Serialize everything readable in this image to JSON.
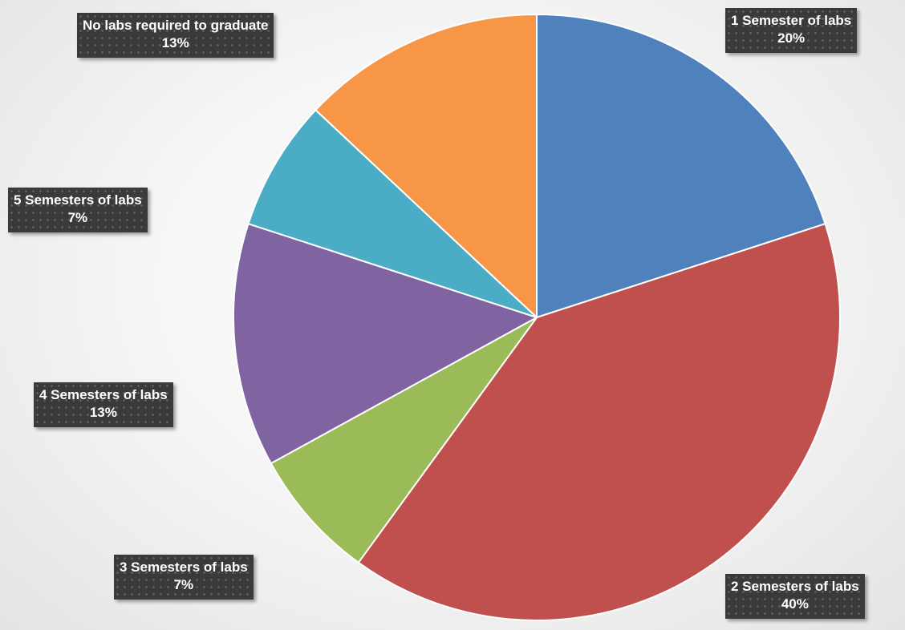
{
  "chart_data": {
    "type": "pie",
    "title": "",
    "slices": [
      {
        "label": "1 Semester of labs",
        "value": 20,
        "value_label": "20%",
        "color": "#4f81bd"
      },
      {
        "label": "2 Semesters of labs",
        "value": 40,
        "value_label": "40%",
        "color": "#c0504d"
      },
      {
        "label": "3 Semesters of labs",
        "value": 7,
        "value_label": "7%",
        "color": "#9bbb59"
      },
      {
        "label": "4 Semesters of labs",
        "value": 13,
        "value_label": "13%",
        "color": "#8064a2"
      },
      {
        "label": "5 Semesters of labs",
        "value": 7,
        "value_label": "7%",
        "color": "#4bacc6"
      },
      {
        "label": "No labs required to graduate",
        "value": 13,
        "value_label": "13%",
        "color": "#f79646"
      }
    ],
    "legend": "none",
    "labels_placement": "outside-callouts"
  }
}
